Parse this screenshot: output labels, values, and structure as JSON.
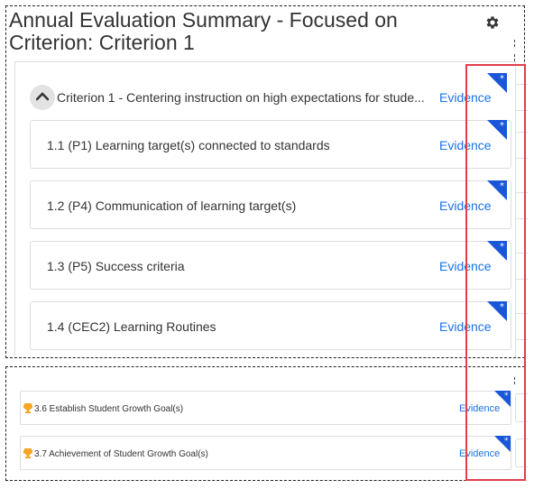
{
  "header": {
    "title": "Annual Evaluation Summary - Focused on Criterion: Criterion 1"
  },
  "criterion": {
    "label": "Criterion 1 - Centering instruction on high expectations for stude...",
    "evidence_label": "Evidence"
  },
  "components": [
    {
      "label": "1.1 (P1) Learning target(s) connected to standards",
      "evidence_label": "Evidence"
    },
    {
      "label": "1.2 (P4) Communication of learning target(s)",
      "evidence_label": "Evidence"
    },
    {
      "label": "1.3 (P5) Success criteria",
      "evidence_label": "Evidence"
    },
    {
      "label": "1.4 (CEC2) Learning Routines",
      "evidence_label": "Evidence"
    }
  ],
  "goals": [
    {
      "label": "3.6 Establish Student Growth Goal(s)",
      "evidence_label": "Evidence"
    },
    {
      "label": "3.7 Achievement of Student Growth Goal(s)",
      "evidence_label": "Evidence"
    }
  ],
  "colors": {
    "accent_blue": "#1a73e8",
    "corner_badge": "#1a57d8",
    "trophy": "#f5a623",
    "highlight": "#e0404a"
  }
}
